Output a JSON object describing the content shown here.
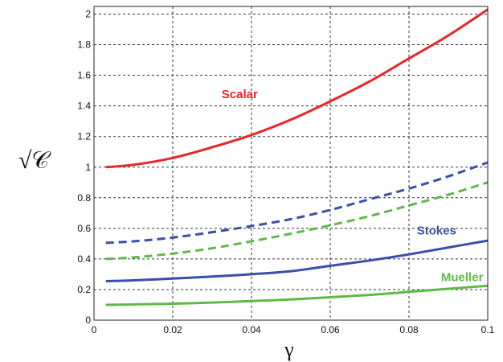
{
  "chart_data": {
    "type": "line",
    "title": "",
    "xlabel": "γ",
    "ylabel": "√𝒞",
    "xlim": [
      0,
      0.1
    ],
    "ylim": [
      0,
      2.05
    ],
    "grid": true,
    "x_ticks": [
      "0",
      "0.02",
      "0.04",
      "0.06",
      "0.08",
      "0.1"
    ],
    "y_ticks": [
      "0",
      "0.2",
      "0.4",
      "0.6",
      "0.8",
      "1",
      "1.2",
      "1.4",
      "1.6",
      "1.8",
      "2"
    ],
    "x": [
      0.003,
      0.01,
      0.02,
      0.03,
      0.04,
      0.05,
      0.06,
      0.07,
      0.08,
      0.09,
      0.1
    ],
    "series": [
      {
        "name": "Scalar",
        "color": "#e8262a",
        "style": "solid",
        "values": [
          1.0,
          1.015,
          1.06,
          1.13,
          1.21,
          1.31,
          1.43,
          1.56,
          1.71,
          1.86,
          2.03
        ]
      },
      {
        "name": "",
        "color": "#3b4fa8",
        "style": "dashed",
        "values": [
          0.505,
          0.515,
          0.54,
          0.575,
          0.615,
          0.66,
          0.72,
          0.79,
          0.86,
          0.94,
          1.03
        ]
      },
      {
        "name": "",
        "color": "#5dba46",
        "style": "dashed",
        "values": [
          0.4,
          0.41,
          0.435,
          0.47,
          0.515,
          0.565,
          0.62,
          0.68,
          0.75,
          0.82,
          0.9
        ]
      },
      {
        "name": "Stokes",
        "color": "#3b4fa8",
        "style": "solid",
        "values": [
          0.255,
          0.26,
          0.272,
          0.285,
          0.3,
          0.32,
          0.355,
          0.39,
          0.43,
          0.475,
          0.52
        ]
      },
      {
        "name": "Mueller",
        "color": "#5dba46",
        "style": "solid",
        "values": [
          0.1,
          0.103,
          0.108,
          0.115,
          0.125,
          0.135,
          0.15,
          0.165,
          0.185,
          0.205,
          0.225
        ]
      }
    ],
    "annotations": [
      {
        "text": "Scalar",
        "series": 0,
        "x": 0.037,
        "y": 1.45
      },
      {
        "text": "Stokes",
        "series": 3,
        "x": 0.087,
        "y": 0.56
      },
      {
        "text": "Mueller",
        "series": 4,
        "x": 0.0935,
        "y": 0.255
      }
    ]
  }
}
